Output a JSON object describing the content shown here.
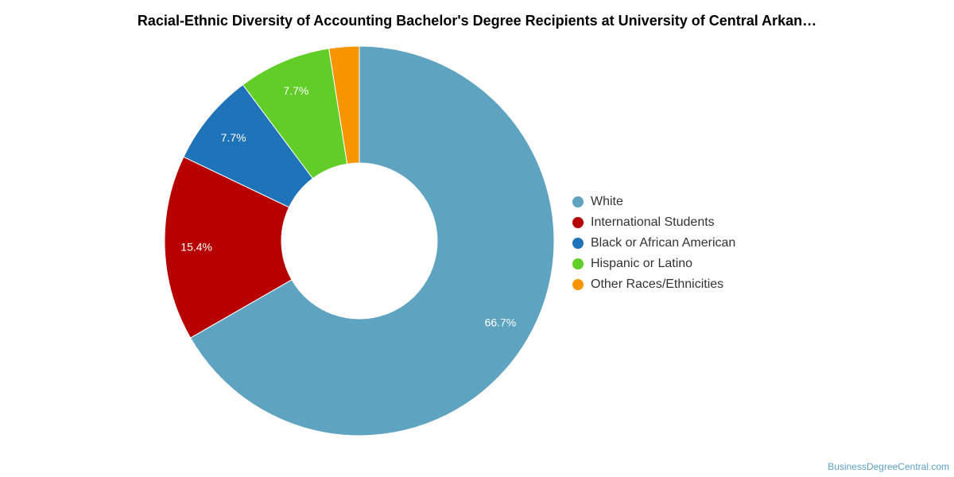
{
  "chart_data": {
    "type": "pie",
    "title": "Racial-Ethnic Diversity of Accounting Bachelor's Degree Recipients at University of Central Arkan…",
    "variant": "donut",
    "legend_position": "right",
    "slices": [
      {
        "name": "White",
        "value": 66.7,
        "label": "66.7%",
        "color": "#5ea3c0"
      },
      {
        "name": "International Students",
        "value": 15.4,
        "label": "15.4%",
        "color": "#b70000"
      },
      {
        "name": "Black or African American",
        "value": 7.7,
        "label": "7.7%",
        "color": "#1e73b9"
      },
      {
        "name": "Hispanic or Latino",
        "value": 7.7,
        "label": "7.7%",
        "color": "#61cd27"
      },
      {
        "name": "Other Races/Ethnicities",
        "value": 2.5,
        "label": "",
        "color": "#f69500"
      }
    ]
  },
  "credit": "BusinessDegreeCentral.com"
}
